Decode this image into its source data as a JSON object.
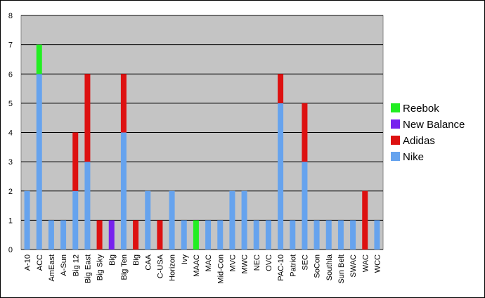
{
  "chart_data": {
    "type": "bar",
    "stacked": true,
    "categories": [
      "A-10",
      "ACC",
      "AmEast",
      "A-Sun",
      "Big 12",
      "Big East",
      "Big Sky",
      "Big",
      "Big Ten",
      "Big",
      "CAA",
      "C-USA",
      "Horizon",
      "Ivy",
      "MAAC",
      "MAC",
      "Mid-Con",
      "MVC",
      "MWC",
      "NEC",
      "OVC",
      "PAC-10",
      "Patriot",
      "SEC",
      "SoCon",
      "Southla",
      "Sun Belt",
      "SWAC",
      "WAC",
      "WCC"
    ],
    "series": [
      {
        "name": "Nike",
        "color": "#66a3ee",
        "values": [
          2,
          6,
          1,
          1,
          2,
          3,
          0,
          0,
          4,
          0,
          2,
          0,
          2,
          1,
          0,
          1,
          1,
          2,
          2,
          1,
          1,
          5,
          1,
          3,
          1,
          1,
          1,
          1,
          0,
          1
        ]
      },
      {
        "name": "Adidas",
        "color": "#dd1111",
        "values": [
          0,
          0,
          0,
          0,
          2,
          3,
          1,
          0,
          2,
          1,
          0,
          1,
          0,
          0,
          0,
          0,
          0,
          0,
          0,
          0,
          0,
          1,
          0,
          2,
          0,
          0,
          0,
          0,
          2,
          0
        ]
      },
      {
        "name": "New Balance",
        "color": "#7722ee",
        "values": [
          0,
          0,
          0,
          0,
          0,
          0,
          0,
          1,
          0,
          0,
          0,
          0,
          0,
          0,
          0,
          0,
          0,
          0,
          0,
          0,
          0,
          0,
          0,
          0,
          0,
          0,
          0,
          0,
          0,
          0
        ]
      },
      {
        "name": "Reebok",
        "color": "#22ee22",
        "values": [
          0,
          1,
          0,
          0,
          0,
          0,
          0,
          0,
          0,
          0,
          0,
          0,
          0,
          0,
          1,
          0,
          0,
          0,
          0,
          0,
          0,
          0,
          0,
          0,
          0,
          0,
          0,
          0,
          0,
          0
        ]
      }
    ],
    "ylim": [
      0,
      8
    ],
    "yticks": [
      0,
      1,
      2,
      3,
      4,
      5,
      6,
      7,
      8
    ],
    "grid": true,
    "legend": "right"
  }
}
